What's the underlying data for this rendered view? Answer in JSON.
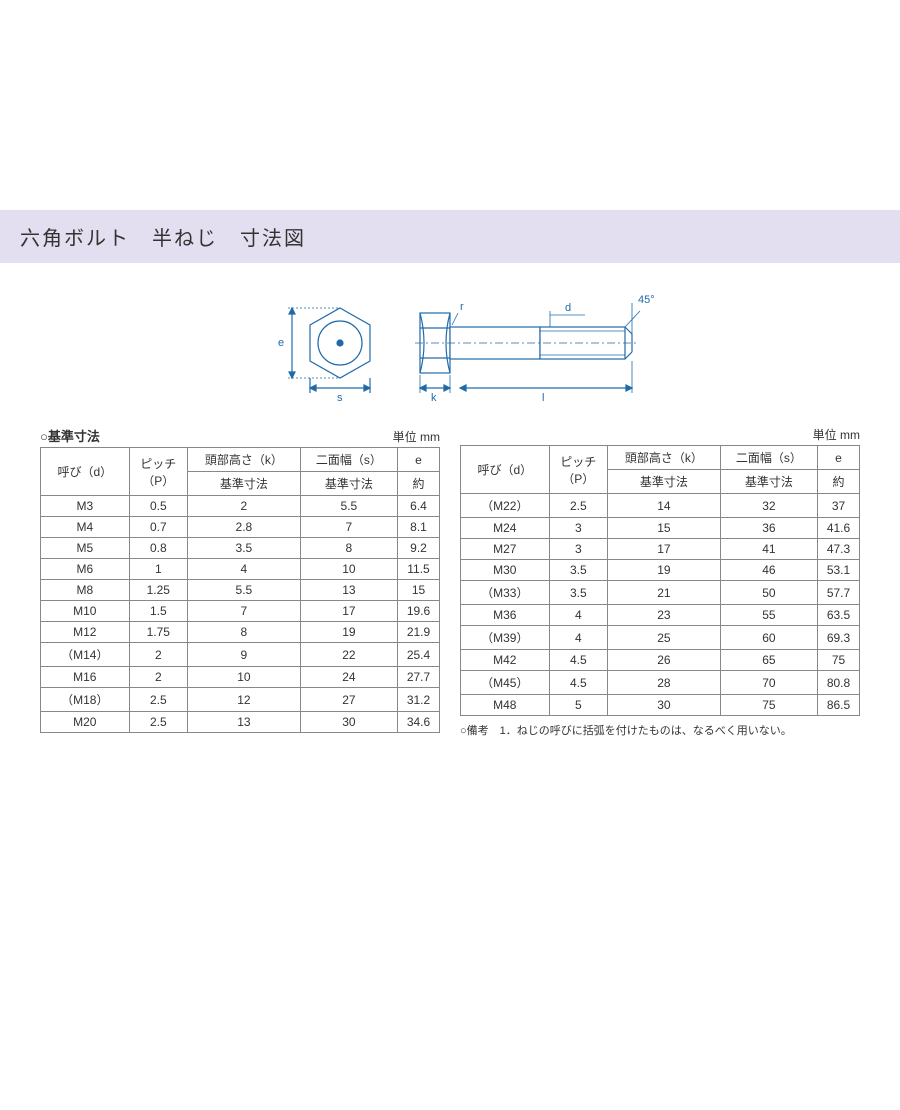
{
  "title": "六角ボルト　半ねじ　寸法図",
  "diagram": {
    "labels": {
      "e": "e",
      "s": "s",
      "k": "k",
      "l": "l",
      "d": "d",
      "r": "r",
      "angle": "45°"
    },
    "stroke": "#216aa8",
    "fill": "#ffffff"
  },
  "tables": {
    "caption_left": "○基準寸法",
    "unit_label": "単位 mm",
    "headers": {
      "yobi": "呼び（d）",
      "pitch": "ピッチ\n（P）",
      "head_h": "頭部高さ（k）",
      "width_s": "二面幅（s）",
      "e": "e",
      "sub_std": "基準寸法",
      "sub_approx": "約"
    },
    "left_rows": [
      [
        "M3",
        "0.5",
        "2",
        "5.5",
        "6.4"
      ],
      [
        "M4",
        "0.7",
        "2.8",
        "7",
        "8.1"
      ],
      [
        "M5",
        "0.8",
        "3.5",
        "8",
        "9.2"
      ],
      [
        "M6",
        "1",
        "4",
        "10",
        "11.5"
      ],
      [
        "M8",
        "1.25",
        "5.5",
        "13",
        "15"
      ],
      [
        "M10",
        "1.5",
        "7",
        "17",
        "19.6"
      ],
      [
        "M12",
        "1.75",
        "8",
        "19",
        "21.9"
      ],
      [
        "（M14）",
        "2",
        "9",
        "22",
        "25.4"
      ],
      [
        "M16",
        "2",
        "10",
        "24",
        "27.7"
      ],
      [
        "（M18）",
        "2.5",
        "12",
        "27",
        "31.2"
      ],
      [
        "M20",
        "2.5",
        "13",
        "30",
        "34.6"
      ]
    ],
    "right_rows": [
      [
        "（M22）",
        "2.5",
        "14",
        "32",
        "37"
      ],
      [
        "M24",
        "3",
        "15",
        "36",
        "41.6"
      ],
      [
        "M27",
        "3",
        "17",
        "41",
        "47.3"
      ],
      [
        "M30",
        "3.5",
        "19",
        "46",
        "53.1"
      ],
      [
        "（M33）",
        "3.5",
        "21",
        "50",
        "57.7"
      ],
      [
        "M36",
        "4",
        "23",
        "55",
        "63.5"
      ],
      [
        "（M39）",
        "4",
        "25",
        "60",
        "69.3"
      ],
      [
        "M42",
        "4.5",
        "26",
        "65",
        "75"
      ],
      [
        "（M45）",
        "4.5",
        "28",
        "70",
        "80.8"
      ],
      [
        "M48",
        "5",
        "30",
        "75",
        "86.5"
      ]
    ],
    "footnote": "○備考　1．ねじの呼びに括弧を付けたものは、なるべく用いない。"
  }
}
